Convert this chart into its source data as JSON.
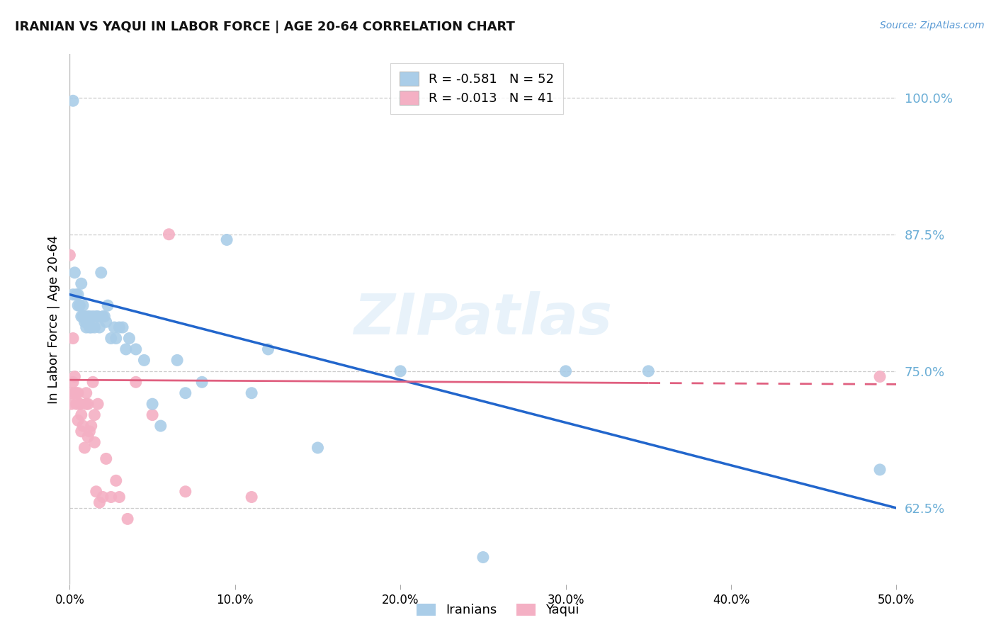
{
  "title": "IRANIAN VS YAQUI IN LABOR FORCE | AGE 20-64 CORRELATION CHART",
  "source": "Source: ZipAtlas.com",
  "ylabel": "In Labor Force | Age 20-64",
  "xmin": 0.0,
  "xmax": 0.5,
  "ymin": 0.555,
  "ymax": 1.04,
  "yticks": [
    0.625,
    0.75,
    0.875,
    1.0
  ],
  "ytick_labels": [
    "62.5%",
    "75.0%",
    "87.5%",
    "100.0%"
  ],
  "xticks": [
    0.0,
    0.1,
    0.2,
    0.3,
    0.4,
    0.5
  ],
  "xtick_labels": [
    "0.0%",
    "10.0%",
    "20.0%",
    "30.0%",
    "40.0%",
    "50.0%"
  ],
  "legend_r_iranian": "-0.581",
  "legend_n_iranian": "52",
  "legend_r_yaqui": "-0.013",
  "legend_n_yaqui": "41",
  "iranian_color": "#aacde8",
  "yaqui_color": "#f4b0c4",
  "trendline_iranian_color": "#2266cc",
  "trendline_yaqui_color": "#e06080",
  "watermark": "ZIPatlas",
  "iranian_trendline_x": [
    0.0,
    0.5
  ],
  "iranian_trendline_y": [
    0.82,
    0.625
  ],
  "yaqui_trendline_x": [
    0.0,
    0.5
  ],
  "yaqui_trendline_y": [
    0.742,
    0.738
  ],
  "iranian_x": [
    0.002,
    0.002,
    0.003,
    0.004,
    0.005,
    0.005,
    0.006,
    0.007,
    0.007,
    0.008,
    0.008,
    0.009,
    0.009,
    0.01,
    0.01,
    0.011,
    0.012,
    0.012,
    0.013,
    0.014,
    0.015,
    0.016,
    0.017,
    0.018,
    0.019,
    0.02,
    0.021,
    0.022,
    0.023,
    0.025,
    0.027,
    0.028,
    0.03,
    0.032,
    0.034,
    0.036,
    0.04,
    0.045,
    0.05,
    0.055,
    0.065,
    0.07,
    0.08,
    0.095,
    0.11,
    0.12,
    0.15,
    0.2,
    0.25,
    0.3,
    0.35,
    0.49
  ],
  "iranian_y": [
    0.997,
    0.82,
    0.84,
    0.82,
    0.82,
    0.81,
    0.81,
    0.83,
    0.8,
    0.81,
    0.8,
    0.795,
    0.8,
    0.79,
    0.795,
    0.8,
    0.79,
    0.8,
    0.79,
    0.8,
    0.79,
    0.8,
    0.8,
    0.79,
    0.84,
    0.8,
    0.8,
    0.795,
    0.81,
    0.78,
    0.79,
    0.78,
    0.79,
    0.79,
    0.77,
    0.78,
    0.77,
    0.76,
    0.72,
    0.7,
    0.76,
    0.73,
    0.74,
    0.87,
    0.73,
    0.77,
    0.68,
    0.75,
    0.58,
    0.75,
    0.75,
    0.66
  ],
  "yaqui_x": [
    0.0,
    0.001,
    0.001,
    0.002,
    0.002,
    0.003,
    0.003,
    0.004,
    0.004,
    0.005,
    0.005,
    0.006,
    0.006,
    0.007,
    0.007,
    0.008,
    0.009,
    0.01,
    0.01,
    0.011,
    0.011,
    0.012,
    0.013,
    0.014,
    0.015,
    0.015,
    0.016,
    0.017,
    0.018,
    0.02,
    0.022,
    0.025,
    0.028,
    0.03,
    0.035,
    0.04,
    0.05,
    0.06,
    0.07,
    0.11,
    0.49
  ],
  "yaqui_y": [
    0.856,
    0.73,
    0.72,
    0.78,
    0.74,
    0.745,
    0.73,
    0.73,
    0.72,
    0.73,
    0.705,
    0.72,
    0.72,
    0.71,
    0.695,
    0.7,
    0.68,
    0.72,
    0.73,
    0.72,
    0.69,
    0.695,
    0.7,
    0.74,
    0.71,
    0.685,
    0.64,
    0.72,
    0.63,
    0.635,
    0.67,
    0.635,
    0.65,
    0.635,
    0.615,
    0.74,
    0.71,
    0.875,
    0.64,
    0.635,
    0.745
  ]
}
